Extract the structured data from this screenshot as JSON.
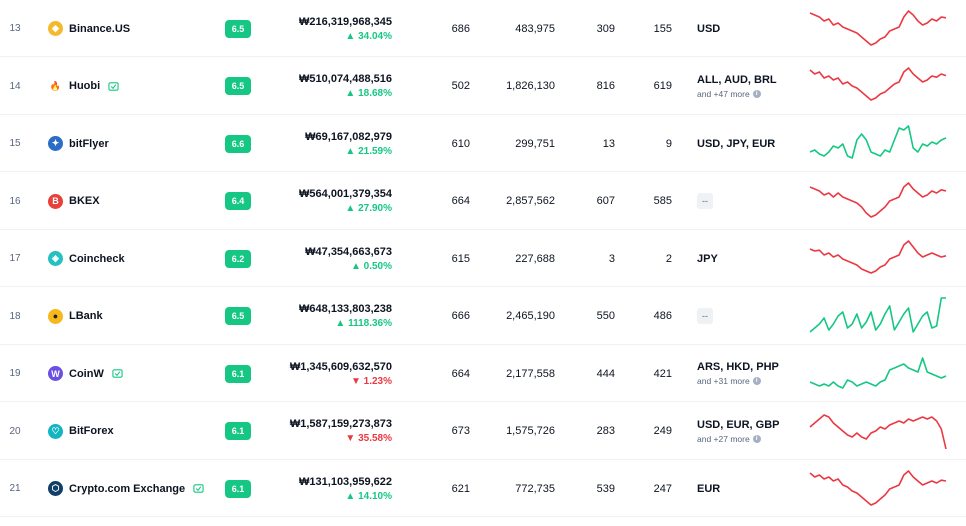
{
  "colors": {
    "up": "#16c784",
    "down": "#ea3943",
    "score_badge": "#16c784"
  },
  "rows": [
    {
      "rank": "13",
      "name": "Binance.US",
      "icon": "binance-logo",
      "verified": false,
      "score": "6.5",
      "volume": "₩216,319,968,345",
      "change": "34.04%",
      "change_dir": "up",
      "markets": "686",
      "coins": "483,975",
      "fiat_a": "309",
      "fiat_b": "155",
      "currencies": "USD",
      "more": "",
      "spark_color": "#ea3943",
      "spark": [
        0.9,
        0.85,
        0.8,
        0.7,
        0.75,
        0.6,
        0.65,
        0.55,
        0.5,
        0.45,
        0.4,
        0.3,
        0.2,
        0.1,
        0.15,
        0.25,
        0.3,
        0.45,
        0.5,
        0.55,
        0.8,
        0.95,
        0.85,
        0.7,
        0.6,
        0.65,
        0.75,
        0.7,
        0.8,
        0.78
      ]
    },
    {
      "rank": "14",
      "name": "Huobi",
      "icon": "huobi-logo",
      "verified": true,
      "score": "6.5",
      "volume": "₩510,074,488,516",
      "change": "18.68%",
      "change_dir": "up",
      "markets": "502",
      "coins": "1,826,130",
      "fiat_a": "816",
      "fiat_b": "619",
      "currencies": "ALL, AUD, BRL",
      "more": "and +47 more",
      "spark_color": "#ea3943",
      "spark": [
        0.9,
        0.8,
        0.85,
        0.7,
        0.75,
        0.65,
        0.7,
        0.55,
        0.6,
        0.5,
        0.45,
        0.35,
        0.25,
        0.15,
        0.2,
        0.3,
        0.35,
        0.45,
        0.55,
        0.6,
        0.85,
        0.95,
        0.8,
        0.7,
        0.6,
        0.65,
        0.75,
        0.72,
        0.8,
        0.76
      ]
    },
    {
      "rank": "15",
      "name": "bitFlyer",
      "icon": "bitflyer-logo",
      "verified": false,
      "score": "6.6",
      "volume": "₩69,167,082,979",
      "change": "21.59%",
      "change_dir": "up",
      "markets": "610",
      "coins": "299,751",
      "fiat_a": "13",
      "fiat_b": "9",
      "currencies": "USD, JPY, EUR",
      "more": "",
      "spark_color": "#16c784",
      "spark": [
        0.3,
        0.35,
        0.25,
        0.2,
        0.3,
        0.45,
        0.4,
        0.5,
        0.2,
        0.15,
        0.6,
        0.75,
        0.6,
        0.3,
        0.25,
        0.2,
        0.35,
        0.3,
        0.6,
        0.9,
        0.85,
        0.95,
        0.4,
        0.3,
        0.5,
        0.45,
        0.55,
        0.5,
        0.6,
        0.65
      ]
    },
    {
      "rank": "16",
      "name": "BKEX",
      "icon": "bkex-logo",
      "verified": false,
      "score": "6.4",
      "volume": "₩564,001,379,354",
      "change": "27.90%",
      "change_dir": "up",
      "markets": "664",
      "coins": "2,857,562",
      "fiat_a": "607",
      "fiat_b": "585",
      "currencies": "",
      "more": "",
      "spark_color": "#ea3943",
      "spark": [
        0.85,
        0.8,
        0.75,
        0.65,
        0.7,
        0.6,
        0.7,
        0.6,
        0.55,
        0.5,
        0.45,
        0.35,
        0.2,
        0.1,
        0.15,
        0.25,
        0.35,
        0.5,
        0.55,
        0.6,
        0.85,
        0.95,
        0.8,
        0.7,
        0.6,
        0.65,
        0.75,
        0.7,
        0.78,
        0.75
      ]
    },
    {
      "rank": "17",
      "name": "Coincheck",
      "icon": "coincheck-logo",
      "verified": false,
      "score": "6.2",
      "volume": "₩47,354,663,673",
      "change": "0.50%",
      "change_dir": "up",
      "markets": "615",
      "coins": "227,688",
      "fiat_a": "3",
      "fiat_b": "2",
      "currencies": "JPY",
      "more": "",
      "spark_color": "#ea3943",
      "spark": [
        0.75,
        0.7,
        0.72,
        0.6,
        0.65,
        0.55,
        0.6,
        0.5,
        0.45,
        0.4,
        0.35,
        0.25,
        0.2,
        0.15,
        0.2,
        0.3,
        0.35,
        0.5,
        0.55,
        0.6,
        0.85,
        0.95,
        0.8,
        0.65,
        0.55,
        0.6,
        0.65,
        0.6,
        0.55,
        0.58
      ]
    },
    {
      "rank": "18",
      "name": "LBank",
      "icon": "lbank-logo",
      "verified": false,
      "score": "6.5",
      "volume": "₩648,133,803,238",
      "change": "1118.36%",
      "change_dir": "up",
      "markets": "666",
      "coins": "2,465,190",
      "fiat_a": "550",
      "fiat_b": "486",
      "currencies": "",
      "more": "",
      "spark_color": "#16c784",
      "spark": [
        0.1,
        0.2,
        0.3,
        0.45,
        0.15,
        0.3,
        0.5,
        0.6,
        0.2,
        0.3,
        0.55,
        0.2,
        0.35,
        0.6,
        0.15,
        0.3,
        0.55,
        0.75,
        0.15,
        0.35,
        0.55,
        0.7,
        0.1,
        0.3,
        0.5,
        0.6,
        0.2,
        0.25,
        0.95,
        0.95
      ]
    },
    {
      "rank": "19",
      "name": "CoinW",
      "icon": "coinw-logo",
      "verified": true,
      "score": "6.1",
      "volume": "₩1,345,609,632,570",
      "change": "1.23%",
      "change_dir": "down",
      "markets": "664",
      "coins": "2,177,558",
      "fiat_a": "444",
      "fiat_b": "421",
      "currencies": "ARS, HKD, PHP",
      "more": "and +31 more",
      "spark_color": "#16c784",
      "spark": [
        0.3,
        0.25,
        0.2,
        0.25,
        0.2,
        0.3,
        0.2,
        0.15,
        0.35,
        0.3,
        0.2,
        0.25,
        0.3,
        0.25,
        0.2,
        0.3,
        0.35,
        0.6,
        0.65,
        0.7,
        0.75,
        0.65,
        0.6,
        0.55,
        0.9,
        0.55,
        0.5,
        0.45,
        0.4,
        0.45
      ]
    },
    {
      "rank": "20",
      "name": "BitForex",
      "icon": "bitforex-logo",
      "verified": false,
      "score": "6.1",
      "volume": "₩1,587,159,273,873",
      "change": "35.58%",
      "change_dir": "down",
      "markets": "673",
      "coins": "1,575,726",
      "fiat_a": "283",
      "fiat_b": "249",
      "currencies": "USD, EUR, GBP",
      "more": "and +27 more",
      "spark_color": "#ea3943",
      "spark": [
        0.6,
        0.7,
        0.8,
        0.9,
        0.85,
        0.7,
        0.6,
        0.5,
        0.4,
        0.35,
        0.45,
        0.35,
        0.3,
        0.45,
        0.5,
        0.6,
        0.55,
        0.65,
        0.7,
        0.75,
        0.7,
        0.8,
        0.75,
        0.8,
        0.85,
        0.8,
        0.85,
        0.75,
        0.55,
        0.05
      ]
    },
    {
      "rank": "21",
      "name": "Crypto.com Exchange",
      "icon": "crypto-com-logo",
      "verified": true,
      "score": "6.1",
      "volume": "₩131,103,959,622",
      "change": "14.10%",
      "change_dir": "up",
      "markets": "621",
      "coins": "772,735",
      "fiat_a": "539",
      "fiat_b": "247",
      "currencies": "EUR",
      "more": "",
      "spark_color": "#ea3943",
      "spark": [
        0.9,
        0.8,
        0.85,
        0.75,
        0.8,
        0.7,
        0.75,
        0.6,
        0.55,
        0.45,
        0.4,
        0.3,
        0.2,
        0.1,
        0.15,
        0.25,
        0.35,
        0.5,
        0.55,
        0.6,
        0.85,
        0.95,
        0.8,
        0.7,
        0.6,
        0.65,
        0.7,
        0.65,
        0.72,
        0.7
      ]
    }
  ]
}
